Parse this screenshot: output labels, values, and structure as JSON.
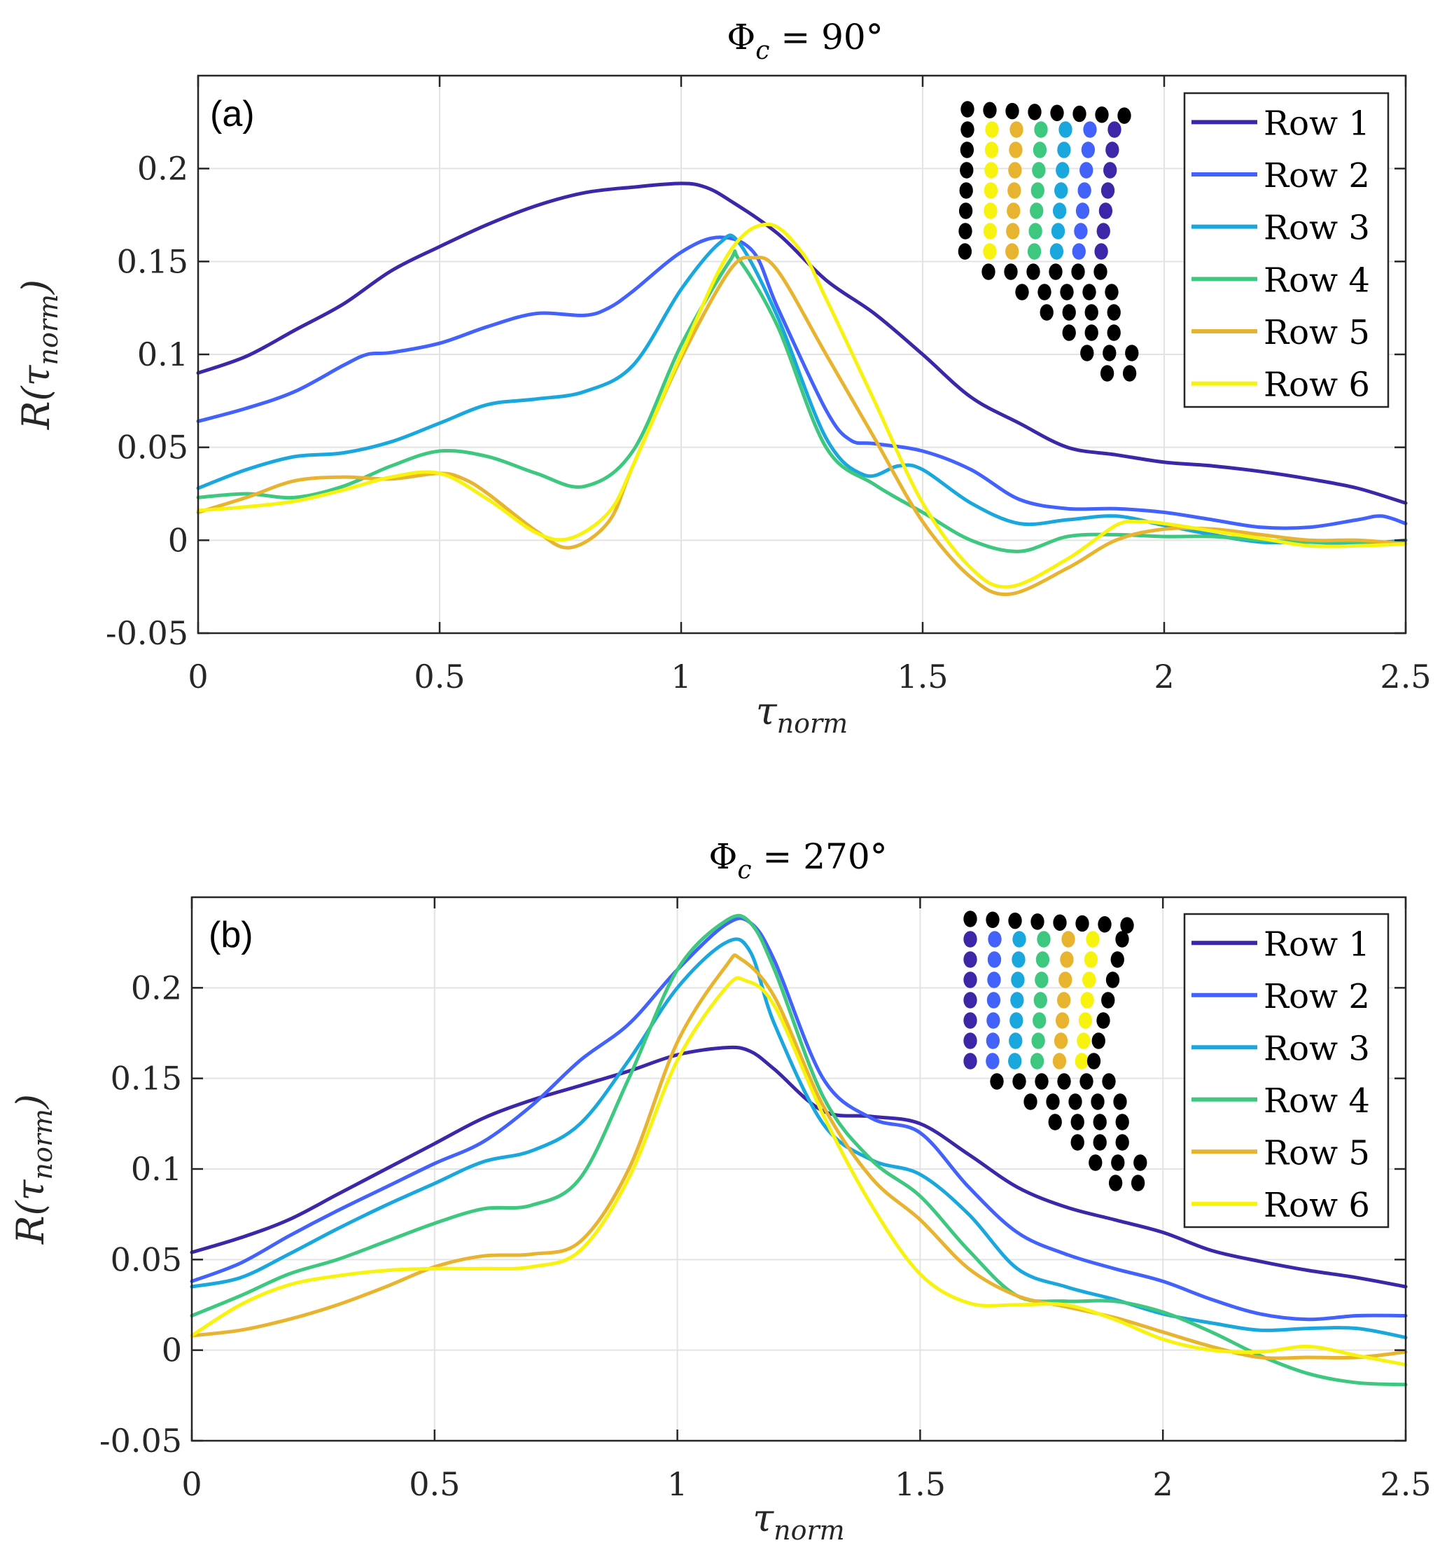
{
  "chart_data": [
    {
      "type": "line",
      "panel_tag": "(a)",
      "title": "Φc = 90°",
      "title_main": "Φ",
      "title_sub": "c",
      "title_rest": " = 90°",
      "xlabel": "τnorm",
      "xlabel_main": "τ",
      "xlabel_sub": "norm",
      "ylabel": "R(τnorm)",
      "ylabel_parts": [
        "R(",
        "τ",
        "norm",
        ")"
      ],
      "xlim": [
        0,
        2.5
      ],
      "ylim": [
        -0.05,
        0.25
      ],
      "xticks": [
        0,
        0.5,
        1,
        1.5,
        2,
        2.5
      ],
      "xtick_labels": [
        "0",
        "0.5",
        "1",
        "1.5",
        "2",
        "2.5"
      ],
      "yticks": [
        -0.05,
        0,
        0.05,
        0.1,
        0.15,
        0.2
      ],
      "ytick_labels": [
        "-0.05",
        "0",
        "0.05",
        "0.1",
        "0.15",
        "0.2"
      ],
      "grid": true,
      "legend_position": "top-right",
      "inset": {
        "description": "sensor array map, colored columns indicate rows",
        "color_column_order": [
          "Row 6",
          "Row 5",
          "Row 4",
          "Row 3",
          "Row 2",
          "Row 1"
        ]
      },
      "series": [
        {
          "name": "Row 1",
          "color": "#3e26a8",
          "x": [
            0,
            0.1,
            0.2,
            0.3,
            0.4,
            0.5,
            0.6,
            0.7,
            0.8,
            0.9,
            1.0,
            1.05,
            1.1,
            1.2,
            1.3,
            1.4,
            1.5,
            1.6,
            1.7,
            1.8,
            1.9,
            2.0,
            2.1,
            2.2,
            2.3,
            2.4,
            2.5
          ],
          "y": [
            0.09,
            0.099,
            0.113,
            0.127,
            0.145,
            0.158,
            0.17,
            0.18,
            0.187,
            0.19,
            0.192,
            0.19,
            0.183,
            0.165,
            0.14,
            0.122,
            0.1,
            0.077,
            0.063,
            0.05,
            0.046,
            0.042,
            0.04,
            0.037,
            0.033,
            0.028,
            0.02
          ]
        },
        {
          "name": "Row 2",
          "color": "#4361fb",
          "x": [
            0,
            0.1,
            0.2,
            0.3,
            0.35,
            0.4,
            0.5,
            0.6,
            0.7,
            0.8,
            0.85,
            0.9,
            1.0,
            1.08,
            1.15,
            1.2,
            1.3,
            1.35,
            1.4,
            1.5,
            1.6,
            1.7,
            1.8,
            1.9,
            2.0,
            2.1,
            2.2,
            2.3,
            2.4,
            2.45,
            2.5
          ],
          "y": [
            0.064,
            0.071,
            0.08,
            0.094,
            0.1,
            0.101,
            0.106,
            0.115,
            0.122,
            0.121,
            0.125,
            0.134,
            0.155,
            0.163,
            0.155,
            0.125,
            0.07,
            0.054,
            0.052,
            0.048,
            0.038,
            0.022,
            0.017,
            0.017,
            0.015,
            0.011,
            0.007,
            0.007,
            0.011,
            0.013,
            0.009
          ]
        },
        {
          "name": "Row 3",
          "color": "#1aa7de",
          "x": [
            0,
            0.1,
            0.2,
            0.3,
            0.4,
            0.5,
            0.6,
            0.7,
            0.8,
            0.9,
            1.0,
            1.08,
            1.12,
            1.2,
            1.3,
            1.38,
            1.45,
            1.5,
            1.6,
            1.7,
            1.8,
            1.9,
            2.0,
            2.1,
            2.2,
            2.3,
            2.4,
            2.5
          ],
          "y": [
            0.028,
            0.038,
            0.045,
            0.047,
            0.053,
            0.063,
            0.073,
            0.076,
            0.08,
            0.094,
            0.135,
            0.16,
            0.16,
            0.12,
            0.055,
            0.035,
            0.04,
            0.038,
            0.02,
            0.009,
            0.011,
            0.013,
            0.008,
            0.003,
            -0.001,
            -0.001,
            -0.002,
            0.0
          ]
        },
        {
          "name": "Row 4",
          "color": "#3dc77f",
          "x": [
            0,
            0.1,
            0.2,
            0.3,
            0.4,
            0.5,
            0.6,
            0.7,
            0.8,
            0.9,
            1.0,
            1.1,
            1.12,
            1.2,
            1.3,
            1.4,
            1.5,
            1.6,
            1.7,
            1.8,
            1.9,
            2.0,
            2.1,
            2.2,
            2.3,
            2.4,
            2.5
          ],
          "y": [
            0.023,
            0.025,
            0.023,
            0.029,
            0.04,
            0.048,
            0.045,
            0.036,
            0.029,
            0.048,
            0.105,
            0.15,
            0.151,
            0.115,
            0.05,
            0.03,
            0.015,
            0.0,
            -0.006,
            0.002,
            0.003,
            0.002,
            0.002,
            0.0,
            -0.001,
            -0.001,
            -0.002
          ]
        },
        {
          "name": "Row 5",
          "color": "#e8b32e",
          "x": [
            0,
            0.1,
            0.2,
            0.3,
            0.4,
            0.5,
            0.55,
            0.6,
            0.7,
            0.77,
            0.85,
            0.9,
            1.0,
            1.1,
            1.15,
            1.2,
            1.3,
            1.4,
            1.5,
            1.6,
            1.68,
            1.8,
            1.9,
            2.0,
            2.1,
            2.2,
            2.3,
            2.4,
            2.5
          ],
          "y": [
            0.015,
            0.023,
            0.032,
            0.034,
            0.033,
            0.036,
            0.033,
            0.025,
            0.005,
            -0.004,
            0.01,
            0.04,
            0.098,
            0.145,
            0.152,
            0.145,
            0.1,
            0.055,
            0.01,
            -0.02,
            -0.029,
            -0.015,
            0.0,
            0.006,
            0.006,
            0.003,
            0.0,
            0.0,
            -0.002
          ]
        },
        {
          "name": "Row 6",
          "color": "#f8f20f",
          "x": [
            0,
            0.1,
            0.2,
            0.3,
            0.4,
            0.5,
            0.6,
            0.7,
            0.77,
            0.85,
            0.9,
            1.0,
            1.1,
            1.18,
            1.25,
            1.3,
            1.4,
            1.5,
            1.6,
            1.68,
            1.8,
            1.9,
            1.95,
            2.0,
            2.1,
            2.2,
            2.3,
            2.4,
            2.5
          ],
          "y": [
            0.016,
            0.018,
            0.021,
            0.027,
            0.034,
            0.036,
            0.022,
            0.004,
            0.001,
            0.015,
            0.04,
            0.1,
            0.155,
            0.17,
            0.155,
            0.13,
            0.075,
            0.02,
            -0.015,
            -0.025,
            -0.01,
            0.008,
            0.01,
            0.009,
            0.005,
            0.001,
            -0.003,
            -0.003,
            -0.002
          ]
        }
      ]
    },
    {
      "type": "line",
      "panel_tag": "(b)",
      "title": "Φc = 270°",
      "title_main": "Φ",
      "title_sub": "c",
      "title_rest": " = 270°",
      "xlabel": "τnorm",
      "xlabel_main": "τ",
      "xlabel_sub": "norm",
      "ylabel": "R(τnorm)",
      "ylabel_parts": [
        "R(",
        "τ",
        "norm",
        ")"
      ],
      "xlim": [
        0,
        2.5
      ],
      "ylim": [
        -0.05,
        0.25
      ],
      "xticks": [
        0,
        0.5,
        1,
        1.5,
        2,
        2.5
      ],
      "xtick_labels": [
        "0",
        "0.5",
        "1",
        "1.5",
        "2",
        "2.5"
      ],
      "yticks": [
        -0.05,
        0,
        0.05,
        0.1,
        0.15,
        0.2
      ],
      "ytick_labels": [
        "-0.05",
        "0",
        "0.05",
        "0.1",
        "0.15",
        "0.2"
      ],
      "grid": true,
      "legend_position": "top-right",
      "inset": {
        "description": "sensor array map, colored columns indicate rows",
        "color_column_order": [
          "Row 1",
          "Row 2",
          "Row 3",
          "Row 4",
          "Row 5",
          "Row 6"
        ]
      },
      "series": [
        {
          "name": "Row 1",
          "color": "#3e26a8",
          "x": [
            0,
            0.1,
            0.2,
            0.3,
            0.4,
            0.5,
            0.6,
            0.7,
            0.8,
            0.9,
            1.0,
            1.1,
            1.15,
            1.2,
            1.3,
            1.4,
            1.5,
            1.6,
            1.7,
            1.8,
            1.9,
            2.0,
            2.1,
            2.2,
            2.3,
            2.4,
            2.5
          ],
          "y": [
            0.054,
            0.062,
            0.072,
            0.086,
            0.1,
            0.114,
            0.128,
            0.138,
            0.146,
            0.154,
            0.163,
            0.167,
            0.165,
            0.155,
            0.132,
            0.129,
            0.125,
            0.108,
            0.09,
            0.079,
            0.072,
            0.065,
            0.055,
            0.049,
            0.044,
            0.04,
            0.035
          ]
        },
        {
          "name": "Row 2",
          "color": "#4361fb",
          "x": [
            0,
            0.1,
            0.2,
            0.3,
            0.4,
            0.5,
            0.6,
            0.7,
            0.8,
            0.9,
            1.0,
            1.1,
            1.15,
            1.2,
            1.3,
            1.4,
            1.5,
            1.6,
            1.7,
            1.8,
            1.9,
            2.0,
            2.1,
            2.2,
            2.3,
            2.4,
            2.5
          ],
          "y": [
            0.038,
            0.048,
            0.063,
            0.077,
            0.09,
            0.103,
            0.115,
            0.135,
            0.16,
            0.18,
            0.21,
            0.235,
            0.236,
            0.215,
            0.15,
            0.128,
            0.12,
            0.09,
            0.065,
            0.053,
            0.045,
            0.038,
            0.028,
            0.02,
            0.017,
            0.019,
            0.019
          ]
        },
        {
          "name": "Row 3",
          "color": "#1aa7de",
          "x": [
            0,
            0.1,
            0.2,
            0.3,
            0.4,
            0.5,
            0.6,
            0.7,
            0.8,
            0.9,
            1.0,
            1.1,
            1.15,
            1.2,
            1.3,
            1.4,
            1.5,
            1.6,
            1.7,
            1.8,
            1.9,
            2.0,
            2.1,
            2.2,
            2.3,
            2.4,
            2.5
          ],
          "y": [
            0.035,
            0.04,
            0.053,
            0.067,
            0.08,
            0.092,
            0.104,
            0.11,
            0.125,
            0.16,
            0.2,
            0.225,
            0.22,
            0.18,
            0.125,
            0.105,
            0.097,
            0.075,
            0.045,
            0.035,
            0.028,
            0.02,
            0.015,
            0.011,
            0.012,
            0.012,
            0.007
          ]
        },
        {
          "name": "Row 4",
          "color": "#3dc77f",
          "x": [
            0,
            0.1,
            0.2,
            0.3,
            0.4,
            0.5,
            0.6,
            0.7,
            0.8,
            0.9,
            1.0,
            1.1,
            1.15,
            1.2,
            1.3,
            1.4,
            1.5,
            1.6,
            1.7,
            1.8,
            1.9,
            2.0,
            2.1,
            2.2,
            2.3,
            2.4,
            2.5
          ],
          "y": [
            0.019,
            0.03,
            0.042,
            0.05,
            0.06,
            0.07,
            0.078,
            0.08,
            0.095,
            0.15,
            0.21,
            0.237,
            0.236,
            0.21,
            0.14,
            0.105,
            0.085,
            0.055,
            0.03,
            0.027,
            0.027,
            0.021,
            0.01,
            -0.003,
            -0.013,
            -0.018,
            -0.019
          ]
        },
        {
          "name": "Row 5",
          "color": "#e8b32e",
          "x": [
            0,
            0.1,
            0.2,
            0.3,
            0.4,
            0.5,
            0.6,
            0.7,
            0.8,
            0.9,
            1.0,
            1.1,
            1.13,
            1.2,
            1.3,
            1.4,
            1.5,
            1.6,
            1.7,
            1.8,
            1.9,
            2.0,
            2.1,
            2.2,
            2.3,
            2.4,
            2.5
          ],
          "y": [
            0.008,
            0.011,
            0.017,
            0.025,
            0.035,
            0.046,
            0.052,
            0.053,
            0.06,
            0.1,
            0.17,
            0.212,
            0.216,
            0.195,
            0.135,
            0.095,
            0.072,
            0.045,
            0.03,
            0.024,
            0.018,
            0.01,
            0.002,
            -0.004,
            -0.004,
            -0.004,
            -0.001
          ]
        },
        {
          "name": "Row 6",
          "color": "#f8f20f",
          "x": [
            0,
            0.1,
            0.2,
            0.3,
            0.4,
            0.5,
            0.6,
            0.7,
            0.8,
            0.9,
            1.0,
            1.1,
            1.14,
            1.2,
            1.3,
            1.4,
            1.5,
            1.6,
            1.7,
            1.8,
            1.9,
            2.0,
            2.1,
            2.2,
            2.3,
            2.4,
            2.5
          ],
          "y": [
            0.008,
            0.025,
            0.036,
            0.041,
            0.044,
            0.045,
            0.045,
            0.046,
            0.055,
            0.095,
            0.16,
            0.2,
            0.204,
            0.19,
            0.13,
            0.08,
            0.042,
            0.026,
            0.025,
            0.025,
            0.017,
            0.006,
            0.0,
            -0.001,
            0.002,
            -0.003,
            -0.008
          ]
        }
      ]
    }
  ]
}
